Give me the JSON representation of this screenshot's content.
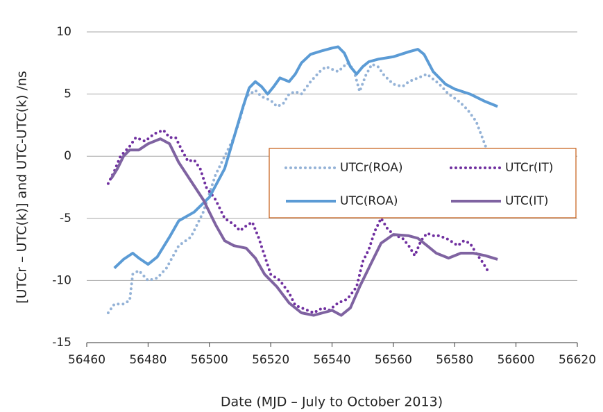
{
  "chart_data": {
    "type": "line",
    "x_label": "Date (MJD – July to October 2013)",
    "y_label": "[UTCr – UTC(k)] and UTC-UTC(k)   /ns",
    "xlim": [
      56460,
      56620
    ],
    "xticks": [
      56460,
      56480,
      56500,
      56520,
      56540,
      56560,
      56580,
      56600,
      56620
    ],
    "ylim": [
      -15,
      10
    ],
    "yticks": [
      -15,
      -10,
      -5,
      0,
      5,
      10
    ],
    "grid": true,
    "series": [
      {
        "name": "UTCr(ROA)",
        "color": "#95b3d7",
        "style": "dotted",
        "x": [
          56467,
          56469,
          56472,
          56474,
          56475,
          56477,
          56480,
          56483,
          56486,
          56490,
          56494,
          56498,
          56502,
          56505,
          56508,
          56510,
          56512,
          56515,
          56517,
          56520,
          56522,
          56524,
          56526,
          56528,
          56530,
          56533,
          56536,
          56538,
          56540,
          56542,
          56545,
          56547,
          56549,
          56551,
          56553,
          56555,
          56557,
          56560,
          56563,
          56565,
          56568,
          56571,
          56573,
          56575,
          56578,
          56581,
          56584,
          56587,
          56589,
          56591
        ],
        "values": [
          -12.6,
          -11.9,
          -11.9,
          -11.6,
          -9.5,
          -9.2,
          -10,
          -9.8,
          -9,
          -7.2,
          -6.5,
          -4.5,
          -1.5,
          0,
          1.5,
          3,
          4.8,
          5.3,
          4.8,
          4.5,
          4,
          4.2,
          5,
          5.2,
          5,
          6,
          6.8,
          7.2,
          7,
          6.8,
          7.5,
          7,
          5.2,
          6.5,
          7.4,
          7.2,
          6.5,
          5.8,
          5.6,
          6,
          6.3,
          6.6,
          6.2,
          5.8,
          5,
          4.5,
          3.8,
          2.8,
          1.5,
          0.2
        ]
      },
      {
        "name": "UTCr(IT)",
        "color": "#7030a0",
        "style": "dotted",
        "x": [
          56467,
          56469,
          56471,
          56474,
          56476,
          56479,
          56482,
          56485,
          56487,
          56489,
          56491,
          56493,
          56495,
          56497,
          56499,
          56502,
          56505,
          56508,
          56510,
          56512,
          56514,
          56516,
          56518,
          56520,
          56523,
          56526,
          56528,
          56531,
          56534,
          56537,
          56539,
          56542,
          56545,
          56548,
          56550,
          56552,
          56554,
          56556,
          56558,
          56560,
          56563,
          56565,
          56567,
          56569,
          56571,
          56573,
          56575,
          56578,
          56581,
          56583,
          56585,
          56587,
          56589,
          56591
        ],
        "values": [
          -2.2,
          -1.2,
          0,
          0.8,
          1.5,
          1.2,
          1.8,
          2.1,
          1.5,
          1.5,
          0.5,
          -0.4,
          -0.3,
          -1,
          -2.5,
          -3.5,
          -5,
          -5.5,
          -6,
          -5.6,
          -5.3,
          -6.5,
          -8,
          -9.5,
          -10,
          -11,
          -12,
          -12.3,
          -12.6,
          -12.2,
          -12.4,
          -11.8,
          -11.5,
          -10.5,
          -8.5,
          -7.5,
          -6,
          -5,
          -5.8,
          -6.3,
          -6.6,
          -7.2,
          -8,
          -6.8,
          -6.2,
          -6.4,
          -6.4,
          -6.7,
          -7.2,
          -6.8,
          -7,
          -7.8,
          -8.5,
          -9.3
        ]
      },
      {
        "name": "UTC(ROA)",
        "color": "#5b9bd5",
        "style": "solid",
        "x": [
          56469,
          56472,
          56475,
          56477,
          56480,
          56483,
          56487,
          56490,
          56495,
          56500,
          56505,
          56508,
          56511,
          56513,
          56515,
          56517,
          56519,
          56521,
          56523,
          56526,
          56528,
          56530,
          56533,
          56537,
          56540,
          56542,
          56544,
          56546,
          56548,
          56550,
          56552,
          56555,
          56560,
          56565,
          56568,
          56570,
          56573,
          56577,
          56580,
          56585,
          56590,
          56594
        ],
        "values": [
          -9,
          -8.3,
          -7.8,
          -8.2,
          -8.7,
          -8.1,
          -6.5,
          -5.2,
          -4.5,
          -3.3,
          -1,
          1.5,
          4,
          5.5,
          6,
          5.6,
          5,
          5.6,
          6.3,
          6,
          6.6,
          7.5,
          8.2,
          8.5,
          8.7,
          8.8,
          8.3,
          7.2,
          6.6,
          7.2,
          7.6,
          7.8,
          8,
          8.4,
          8.6,
          8.2,
          6.8,
          5.8,
          5.4,
          5,
          4.4,
          4
        ]
      },
      {
        "name": "UTC(IT)",
        "color": "#7f63a1",
        "style": "solid",
        "x": [
          56468,
          56470,
          56472,
          56474,
          56477,
          56480,
          56484,
          56487,
          56490,
          56494,
          56498,
          56502,
          56505,
          56508,
          56512,
          56515,
          56518,
          56522,
          56526,
          56530,
          56534,
          56537,
          56540,
          56543,
          56546,
          56549,
          56553,
          56556,
          56560,
          56565,
          56568,
          56571,
          56574,
          56578,
          56582,
          56586,
          56590,
          56594
        ],
        "values": [
          -1.8,
          -1,
          0,
          0.5,
          0.5,
          1,
          1.4,
          1,
          -0.5,
          -2,
          -3.5,
          -5.5,
          -6.8,
          -7.2,
          -7.4,
          -8.2,
          -9.5,
          -10.5,
          -11.8,
          -12.6,
          -12.8,
          -12.6,
          -12.4,
          -12.8,
          -12.2,
          -10.5,
          -8.5,
          -7,
          -6.3,
          -6.4,
          -6.6,
          -7.2,
          -7.8,
          -8.2,
          -7.8,
          -7.8,
          -8,
          -8.3
        ]
      }
    ]
  }
}
